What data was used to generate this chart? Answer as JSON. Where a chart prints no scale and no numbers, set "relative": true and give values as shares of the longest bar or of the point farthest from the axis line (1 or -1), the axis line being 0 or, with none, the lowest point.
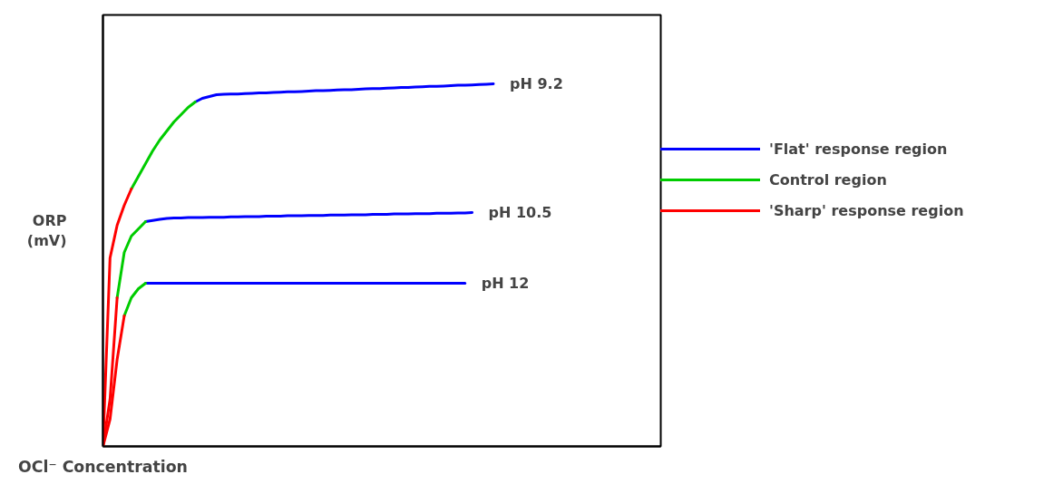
{
  "chart_data": {
    "type": "line",
    "relative": true,
    "xlabel": "OCl⁻ Concentration",
    "ylabel": "ORP (mV)",
    "categories": [
      null,
      null,
      null,
      null,
      null,
      null,
      null,
      null,
      null,
      null,
      null,
      null,
      null,
      null,
      null,
      null,
      null,
      null,
      null,
      null,
      null,
      null,
      null,
      null,
      null,
      null,
      null,
      null,
      null,
      null,
      null,
      null,
      null,
      null,
      null,
      null,
      null,
      null,
      null,
      null,
      null,
      null,
      null,
      null,
      null,
      null,
      null,
      null,
      null,
      null,
      null,
      null,
      null,
      null,
      null,
      null
    ],
    "grid": false,
    "legend": "right",
    "marker": "none",
    "line_style": "solid",
    "series": [
      {
        "name": "'Flat' response region",
        "color": "#0000ff",
        "values": [
          null,
          null,
          null,
          null,
          null,
          null,
          null,
          null,
          null,
          null,
          null,
          null,
          null,
          0.95,
          0.96,
          0.965,
          0.97,
          0.971,
          0.972,
          0.972,
          0.973,
          0.974,
          0.975,
          0.975,
          0.976,
          0.977,
          0.978,
          0.978,
          0.979,
          0.98,
          0.981,
          0.981,
          0.982,
          0.983,
          0.984,
          0.984,
          0.985,
          0.986,
          0.987,
          0.987,
          0.988,
          0.989,
          0.99,
          0.99,
          0.991,
          0.992,
          0.993,
          0.993,
          0.994,
          0.995,
          0.996,
          0.996,
          0.997,
          0.998,
          0.999,
          1.0
        ]
      },
      {
        "name": "Control region",
        "color": "#00cc00",
        "values": [
          null,
          null,
          null,
          null,
          0.71,
          0.745,
          0.78,
          0.815,
          0.845,
          0.87,
          0.895,
          0.915,
          0.935,
          0.95,
          null,
          null,
          null,
          null,
          null,
          null,
          null,
          null,
          null,
          null,
          null,
          null,
          null,
          null,
          null,
          null,
          null,
          null,
          null,
          null,
          null,
          null,
          null,
          null,
          null,
          null,
          null,
          null,
          null,
          null,
          null,
          null,
          null,
          null,
          null,
          null,
          null,
          null,
          null,
          null,
          null,
          null
        ]
      },
      {
        "name": "'Sharp' response region",
        "color": "#ff0000",
        "values": [
          0,
          0.52,
          0.61,
          0.665,
          0.71,
          null,
          null,
          null,
          null,
          null,
          null,
          null,
          null,
          null,
          null,
          null,
          null,
          null,
          null,
          null,
          null,
          null,
          null,
          null,
          null,
          null,
          null,
          null,
          null,
          null,
          null,
          null,
          null,
          null,
          null,
          null,
          null,
          null,
          null,
          null,
          null,
          null,
          null,
          null,
          null,
          null,
          null,
          null,
          null,
          null,
          null,
          null,
          null,
          null,
          null,
          null
        ]
      },
      {
        "color": "#0000ff",
        "values": [
          null,
          null,
          null,
          null,
          null,
          null,
          0.62,
          0.623,
          0.626,
          0.629,
          0.63,
          0.63,
          0.631,
          0.631,
          0.631,
          0.632,
          0.632,
          0.632,
          0.633,
          0.633,
          0.634,
          0.634,
          0.634,
          0.635,
          0.635,
          0.635,
          0.636,
          0.636,
          0.636,
          0.637,
          0.637,
          0.637,
          0.638,
          0.638,
          0.638,
          0.639,
          0.639,
          0.639,
          0.64,
          0.64,
          0.64,
          0.641,
          0.641,
          0.641,
          0.642,
          0.642,
          0.642,
          0.643,
          0.643,
          0.643,
          0.644,
          0.644,
          0.645,
          null,
          null,
          null
        ]
      },
      {
        "color": "#00cc00",
        "values": [
          null,
          null,
          0.41,
          0.535,
          0.58,
          0.6,
          0.62,
          null,
          null,
          null,
          null,
          null,
          null,
          null,
          null,
          null,
          null,
          null,
          null,
          null,
          null,
          null,
          null,
          null,
          null,
          null,
          null,
          null,
          null,
          null,
          null,
          null,
          null,
          null,
          null,
          null,
          null,
          null,
          null,
          null,
          null,
          null,
          null,
          null,
          null,
          null,
          null,
          null,
          null,
          null,
          null,
          null,
          null,
          null,
          null,
          null
        ]
      },
      {
        "color": "#ff0000",
        "values": [
          0,
          0.13,
          0.41,
          null,
          null,
          null,
          null,
          null,
          null,
          null,
          null,
          null,
          null,
          null,
          null,
          null,
          null,
          null,
          null,
          null,
          null,
          null,
          null,
          null,
          null,
          null,
          null,
          null,
          null,
          null,
          null,
          null,
          null,
          null,
          null,
          null,
          null,
          null,
          null,
          null,
          null,
          null,
          null,
          null,
          null,
          null,
          null,
          null,
          null,
          null,
          null,
          null,
          null,
          null,
          null,
          null
        ]
      },
      {
        "color": "#0000ff",
        "values": [
          null,
          null,
          null,
          null,
          null,
          null,
          0.45,
          0.45,
          0.45,
          0.45,
          0.45,
          0.45,
          0.45,
          0.45,
          0.45,
          0.45,
          0.45,
          0.45,
          0.45,
          0.45,
          0.45,
          0.45,
          0.45,
          0.45,
          0.45,
          0.45,
          0.45,
          0.45,
          0.45,
          0.45,
          0.45,
          0.45,
          0.45,
          0.45,
          0.45,
          0.45,
          0.45,
          0.45,
          0.45,
          0.45,
          0.45,
          0.45,
          0.45,
          0.45,
          0.45,
          0.45,
          0.45,
          0.45,
          0.45,
          0.45,
          0.45,
          0.45,
          null,
          null,
          null,
          null
        ]
      },
      {
        "color": "#00cc00",
        "values": [
          null,
          null,
          null,
          0.36,
          0.41,
          0.435,
          0.45,
          null,
          null,
          null,
          null,
          null,
          null,
          null,
          null,
          null,
          null,
          null,
          null,
          null,
          null,
          null,
          null,
          null,
          null,
          null,
          null,
          null,
          null,
          null,
          null,
          null,
          null,
          null,
          null,
          null,
          null,
          null,
          null,
          null,
          null,
          null,
          null,
          null,
          null,
          null,
          null,
          null,
          null,
          null,
          null,
          null,
          null,
          null,
          null,
          null
        ]
      },
      {
        "color": "#ff0000",
        "values": [
          0,
          0.075,
          0.24,
          0.36,
          null,
          null,
          null,
          null,
          null,
          null,
          null,
          null,
          null,
          null,
          null,
          null,
          null,
          null,
          null,
          null,
          null,
          null,
          null,
          null,
          null,
          null,
          null,
          null,
          null,
          null,
          null,
          null,
          null,
          null,
          null,
          null,
          null,
          null,
          null,
          null,
          null,
          null,
          null,
          null,
          null,
          null,
          null,
          null,
          null,
          null,
          null,
          null,
          null,
          null,
          null,
          null
        ]
      }
    ],
    "annotations": [
      "pH 9.2",
      "pH 10.5",
      "pH 12"
    ]
  }
}
